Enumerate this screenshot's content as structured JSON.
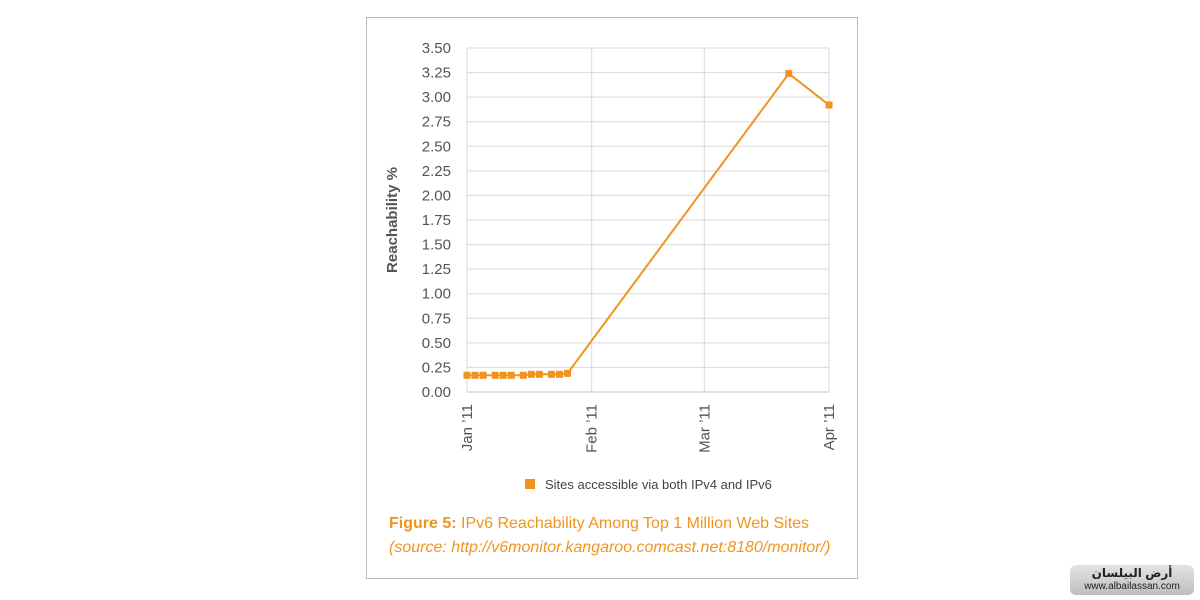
{
  "chart_data": {
    "type": "line",
    "ylabel": "Reachability %",
    "ylim": [
      0,
      3.5
    ],
    "y_ticks": [
      "3.50",
      "3.25",
      "3.00",
      "2.75",
      "2.50",
      "2.25",
      "2.00",
      "1.75",
      "1.50",
      "1.25",
      "1.00",
      "0.75",
      "0.50",
      "0.25",
      "0.00"
    ],
    "x_ticks": [
      "Jan ’11",
      "Feb ’11",
      "Mar ’11",
      "Apr ’11"
    ],
    "grid": true,
    "legend_position": "bottom",
    "series": [
      {
        "name": "Sites accessible via both IPv4 and IPv6",
        "color": "#f0941f",
        "x": [
          "2011-01-01",
          "2011-01-03",
          "2011-01-05",
          "2011-01-08",
          "2011-01-10",
          "2011-01-12",
          "2011-01-15",
          "2011-01-17",
          "2011-01-19",
          "2011-01-22",
          "2011-01-24",
          "2011-01-26",
          "2011-03-22",
          "2011-04-01"
        ],
        "values": [
          0.17,
          0.17,
          0.17,
          0.17,
          0.17,
          0.17,
          0.17,
          0.18,
          0.18,
          0.18,
          0.18,
          0.19,
          3.24,
          2.92
        ]
      }
    ]
  },
  "caption": {
    "figure_number": "Figure 5:",
    "title": "IPv6 Reachability Among Top 1 Million Web Sites",
    "source": "(source: http://v6monitor.kangaroo.comcast.net:8180/monitor/)"
  },
  "watermark": {
    "arabic": "أرض البيلسان",
    "url": "www.albailassan.com"
  }
}
